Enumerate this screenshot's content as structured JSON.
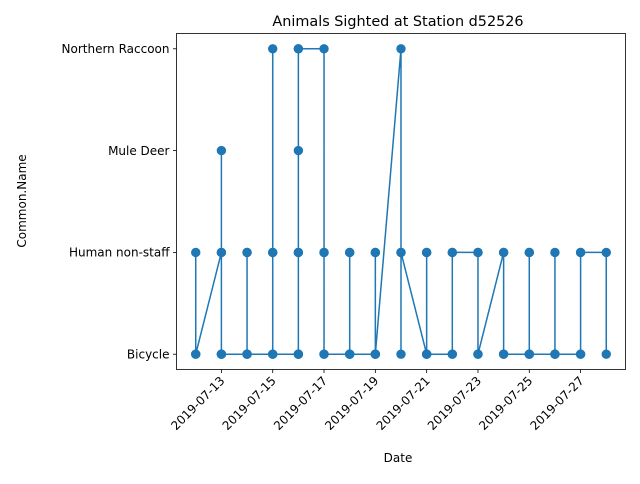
{
  "chart_data": {
    "type": "line",
    "title": "Animals Sighted at Station d52526",
    "xlabel": "Date",
    "ylabel": "Common.Name",
    "x_ticks": [
      "2019-07-13",
      "2019-07-15",
      "2019-07-17",
      "2019-07-19",
      "2019-07-21",
      "2019-07-23",
      "2019-07-25",
      "2019-07-27"
    ],
    "categories": [
      "Bicycle",
      "Human non-staff",
      "Mule Deer",
      "Northern Raccoon"
    ],
    "xlim": [
      "2019-07-11T06:00",
      "2019-07-28T18:00"
    ],
    "grid": false,
    "series": [
      {
        "color": "#1f77b4",
        "marker": "circle",
        "points": [
          {
            "date": "2019-07-12",
            "name": "Human non-staff"
          },
          {
            "date": "2019-07-12",
            "name": "Bicycle"
          },
          {
            "date": "2019-07-12",
            "name": "Bicycle"
          },
          {
            "date": "2019-07-13",
            "name": "Human non-staff"
          },
          {
            "date": "2019-07-13",
            "name": "Bicycle"
          },
          {
            "date": "2019-07-13",
            "name": "Mule Deer"
          },
          {
            "date": "2019-07-13",
            "name": "Bicycle"
          },
          {
            "date": "2019-07-13",
            "name": "Human non-staff"
          },
          {
            "date": "2019-07-13",
            "name": "Bicycle"
          },
          {
            "date": "2019-07-14",
            "name": "Bicycle"
          },
          {
            "date": "2019-07-14",
            "name": "Human non-staff"
          },
          {
            "date": "2019-07-14",
            "name": "Bicycle"
          },
          {
            "date": "2019-07-14",
            "name": "Human non-staff"
          },
          {
            "date": "2019-07-14",
            "name": "Bicycle"
          },
          {
            "date": "2019-07-15",
            "name": "Bicycle"
          },
          {
            "date": "2019-07-15",
            "name": "Human non-staff"
          },
          {
            "date": "2019-07-15",
            "name": "Northern Raccoon"
          },
          {
            "date": "2019-07-15",
            "name": "Human non-staff"
          },
          {
            "date": "2019-07-15",
            "name": "Bicycle"
          },
          {
            "date": "2019-07-16",
            "name": "Bicycle"
          },
          {
            "date": "2019-07-16",
            "name": "Northern Raccoon"
          },
          {
            "date": "2019-07-16",
            "name": "Human non-staff"
          },
          {
            "date": "2019-07-16",
            "name": "Mule Deer"
          },
          {
            "date": "2019-07-16",
            "name": "Bicycle"
          },
          {
            "date": "2019-07-16",
            "name": "Human non-staff"
          },
          {
            "date": "2019-07-16",
            "name": "Bicycle"
          },
          {
            "date": "2019-07-16",
            "name": "Northern Raccoon"
          },
          {
            "date": "2019-07-17",
            "name": "Northern Raccoon"
          },
          {
            "date": "2019-07-17",
            "name": "Human non-staff"
          },
          {
            "date": "2019-07-17",
            "name": "Bicycle"
          },
          {
            "date": "2019-07-17",
            "name": "Human non-staff"
          },
          {
            "date": "2019-07-17",
            "name": "Bicycle"
          },
          {
            "date": "2019-07-18",
            "name": "Bicycle"
          },
          {
            "date": "2019-07-18",
            "name": "Human non-staff"
          },
          {
            "date": "2019-07-18",
            "name": "Bicycle"
          },
          {
            "date": "2019-07-18",
            "name": "Human non-staff"
          },
          {
            "date": "2019-07-18",
            "name": "Bicycle"
          },
          {
            "date": "2019-07-19",
            "name": "Bicycle"
          },
          {
            "date": "2019-07-19",
            "name": "Human non-staff"
          },
          {
            "date": "2019-07-19",
            "name": "Bicycle"
          },
          {
            "date": "2019-07-19",
            "name": "Human non-staff"
          },
          {
            "date": "2019-07-19",
            "name": "Bicycle"
          },
          {
            "date": "2019-07-20",
            "name": "Northern Raccoon"
          },
          {
            "date": "2019-07-20",
            "name": "Human non-staff"
          },
          {
            "date": "2019-07-20",
            "name": "Bicycle"
          },
          {
            "date": "2019-07-20",
            "name": "Human non-staff"
          },
          {
            "date": "2019-07-21",
            "name": "Bicycle"
          },
          {
            "date": "2019-07-21",
            "name": "Human non-staff"
          },
          {
            "date": "2019-07-21",
            "name": "Bicycle"
          },
          {
            "date": "2019-07-21",
            "name": "Human non-staff"
          },
          {
            "date": "2019-07-21",
            "name": "Bicycle"
          },
          {
            "date": "2019-07-22",
            "name": "Bicycle"
          },
          {
            "date": "2019-07-22",
            "name": "Human non-staff"
          },
          {
            "date": "2019-07-22",
            "name": "Bicycle"
          },
          {
            "date": "2019-07-22",
            "name": "Human non-staff"
          },
          {
            "date": "2019-07-23",
            "name": "Human non-staff"
          },
          {
            "date": "2019-07-23",
            "name": "Bicycle"
          },
          {
            "date": "2019-07-23",
            "name": "Human non-staff"
          },
          {
            "date": "2019-07-23",
            "name": "Bicycle"
          },
          {
            "date": "2019-07-24",
            "name": "Human non-staff"
          },
          {
            "date": "2019-07-24",
            "name": "Bicycle"
          },
          {
            "date": "2019-07-24",
            "name": "Human non-staff"
          },
          {
            "date": "2019-07-24",
            "name": "Bicycle"
          },
          {
            "date": "2019-07-25",
            "name": "Bicycle"
          },
          {
            "date": "2019-07-25",
            "name": "Human non-staff"
          },
          {
            "date": "2019-07-25",
            "name": "Bicycle"
          },
          {
            "date": "2019-07-25",
            "name": "Human non-staff"
          },
          {
            "date": "2019-07-25",
            "name": "Bicycle"
          },
          {
            "date": "2019-07-26",
            "name": "Bicycle"
          },
          {
            "date": "2019-07-26",
            "name": "Human non-staff"
          },
          {
            "date": "2019-07-26",
            "name": "Bicycle"
          },
          {
            "date": "2019-07-26",
            "name": "Bicycle"
          },
          {
            "date": "2019-07-27",
            "name": "Bicycle"
          },
          {
            "date": "2019-07-27",
            "name": "Human non-staff"
          },
          {
            "date": "2019-07-27",
            "name": "Bicycle"
          },
          {
            "date": "2019-07-27",
            "name": "Human non-staff"
          },
          {
            "date": "2019-07-28",
            "name": "Human non-staff"
          },
          {
            "date": "2019-07-28",
            "name": "Bicycle"
          }
        ]
      }
    ]
  }
}
